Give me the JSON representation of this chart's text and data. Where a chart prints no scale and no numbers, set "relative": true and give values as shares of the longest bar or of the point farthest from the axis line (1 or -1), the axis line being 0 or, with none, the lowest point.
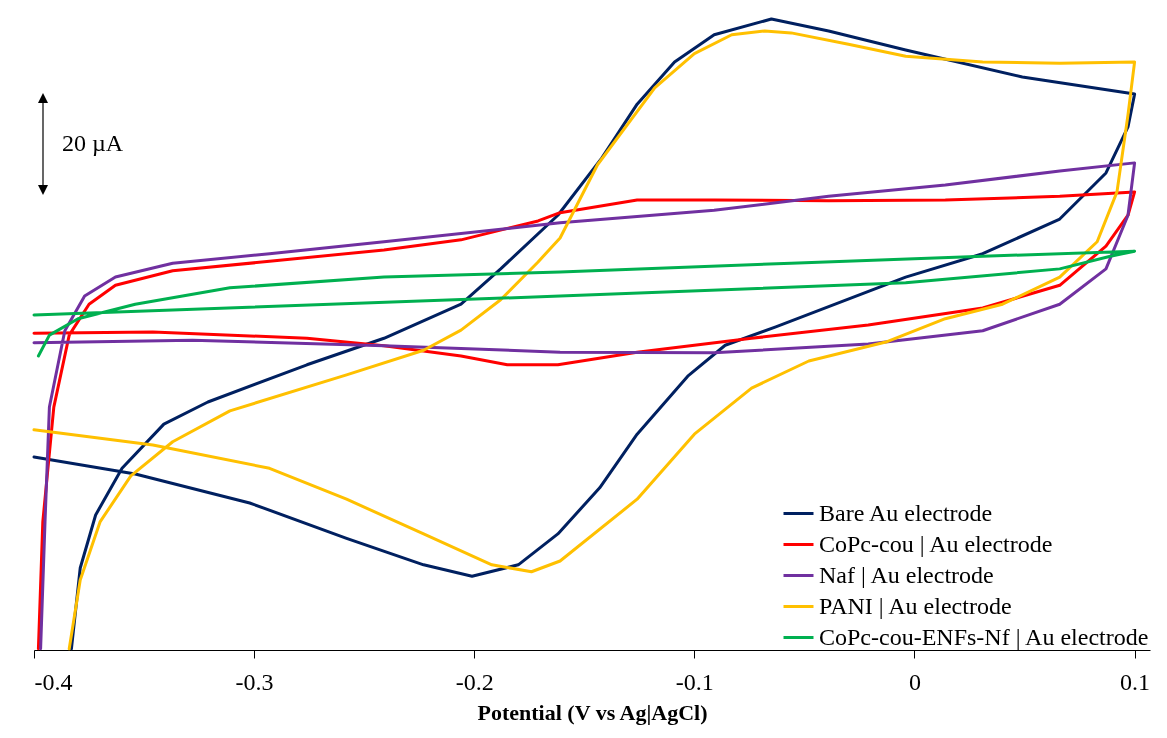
{
  "chart_data": {
    "type": "line",
    "relative": true,
    "xlabel": "Potential (V vs Ag|AgCl)",
    "xlim": [
      -0.4,
      0.107
    ],
    "xticks": [
      -0.4,
      -0.3,
      -0.2,
      -0.1,
      0,
      0.1
    ],
    "grid": false,
    "legend": "bottom right",
    "marker": "none",
    "line_style": "solid",
    "annotations": [
      "20 µA"
    ],
    "series": [
      {
        "name": "Bare Au electrode",
        "color": "#002060",
        "x": [
          -0.4,
          -0.354,
          -0.302,
          -0.258,
          -0.223,
          -0.201,
          -0.18,
          -0.162,
          -0.143,
          -0.126,
          -0.103,
          -0.086,
          -0.063,
          -0.004,
          0.031,
          0.066,
          0.087,
          0.097,
          0.1,
          0.049,
          -0.004,
          -0.039,
          -0.065,
          -0.091,
          -0.109,
          -0.126,
          -0.142,
          -0.162,
          -0.188,
          -0.206,
          -0.241,
          -0.276,
          -0.321,
          -0.341,
          -0.36,
          -0.372,
          -0.379,
          -0.383
        ],
        "values": [
          0.306,
          0.279,
          0.233,
          0.177,
          0.135,
          0.117,
          0.135,
          0.184,
          0.257,
          0.342,
          0.434,
          0.483,
          0.512,
          0.591,
          0.628,
          0.683,
          0.756,
          0.829,
          0.881,
          0.908,
          0.951,
          0.981,
          1.0,
          0.975,
          0.932,
          0.865,
          0.78,
          0.689,
          0.604,
          0.548,
          0.494,
          0.452,
          0.393,
          0.358,
          0.288,
          0.214,
          0.13,
          0.002
        ]
      },
      {
        "name": "CoPc-cou | Au electrode",
        "color": "#ff0000",
        "x": [
          -0.4,
          -0.346,
          -0.276,
          -0.241,
          -0.206,
          -0.185,
          -0.162,
          -0.126,
          -0.074,
          -0.021,
          0.031,
          0.066,
          0.087,
          0.097,
          0.1,
          0.066,
          0.014,
          -0.039,
          -0.091,
          -0.126,
          -0.161,
          -0.171,
          -0.206,
          -0.241,
          -0.293,
          -0.337,
          -0.363,
          -0.375,
          -0.384,
          -0.391,
          -0.396,
          -0.398
        ],
        "values": [
          0.502,
          0.504,
          0.494,
          0.482,
          0.466,
          0.452,
          0.452,
          0.472,
          0.494,
          0.515,
          0.542,
          0.578,
          0.64,
          0.689,
          0.726,
          0.719,
          0.713,
          0.712,
          0.713,
          0.713,
          0.693,
          0.68,
          0.65,
          0.634,
          0.616,
          0.601,
          0.578,
          0.548,
          0.499,
          0.385,
          0.203,
          0.002
        ]
      },
      {
        "name": "Naf | Au electrode",
        "color": "#7030a0",
        "x": [
          -0.4,
          -0.328,
          -0.241,
          -0.161,
          -0.091,
          -0.021,
          0.031,
          0.066,
          0.087,
          0.097,
          0.1,
          0.066,
          0.014,
          -0.039,
          -0.091,
          -0.161,
          -0.241,
          -0.293,
          -0.337,
          -0.363,
          -0.377,
          -0.386,
          -0.393,
          -0.395,
          -0.397
        ],
        "values": [
          0.487,
          0.491,
          0.482,
          0.472,
          0.471,
          0.485,
          0.506,
          0.548,
          0.604,
          0.689,
          0.772,
          0.759,
          0.737,
          0.719,
          0.697,
          0.677,
          0.647,
          0.628,
          0.613,
          0.591,
          0.561,
          0.506,
          0.385,
          0.203,
          0.002
        ]
      },
      {
        "name": "PANI | Au electrode",
        "color": "#ffc000",
        "x": [
          -0.4,
          -0.346,
          -0.293,
          -0.258,
          -0.223,
          -0.192,
          -0.174,
          -0.161,
          -0.126,
          -0.1,
          -0.074,
          -0.048,
          -0.013,
          0.014,
          0.04,
          0.066,
          0.083,
          0.092,
          0.097,
          0.1,
          0.066,
          0.031,
          -0.004,
          -0.03,
          -0.056,
          -0.068,
          -0.083,
          -0.1,
          -0.118,
          -0.144,
          -0.161,
          -0.171,
          -0.188,
          -0.206,
          -0.223,
          -0.258,
          -0.311,
          -0.337,
          -0.356,
          -0.37,
          -0.379,
          -0.384
        ],
        "values": [
          0.349,
          0.325,
          0.288,
          0.239,
          0.184,
          0.135,
          0.124,
          0.141,
          0.239,
          0.342,
          0.415,
          0.458,
          0.488,
          0.525,
          0.548,
          0.591,
          0.647,
          0.726,
          0.848,
          0.932,
          0.93,
          0.932,
          0.941,
          0.96,
          0.978,
          0.981,
          0.975,
          0.945,
          0.891,
          0.769,
          0.653,
          0.615,
          0.555,
          0.507,
          0.475,
          0.436,
          0.379,
          0.33,
          0.276,
          0.203,
          0.111,
          0.002
        ]
      },
      {
        "name": "CoPc-cou-ENFs-Nf | Au electrode",
        "color": "#00b050",
        "x": [
          -0.4,
          -0.161,
          -0.004,
          0.066,
          0.089,
          0.1,
          0.031,
          -0.056,
          -0.161,
          -0.241,
          -0.311,
          -0.354,
          -0.38,
          -0.393,
          -0.398
        ],
        "values": [
          0.531,
          0.561,
          0.582,
          0.604,
          0.624,
          0.632,
          0.624,
          0.613,
          0.599,
          0.591,
          0.574,
          0.548,
          0.525,
          0.499,
          0.466
        ]
      }
    ]
  }
}
